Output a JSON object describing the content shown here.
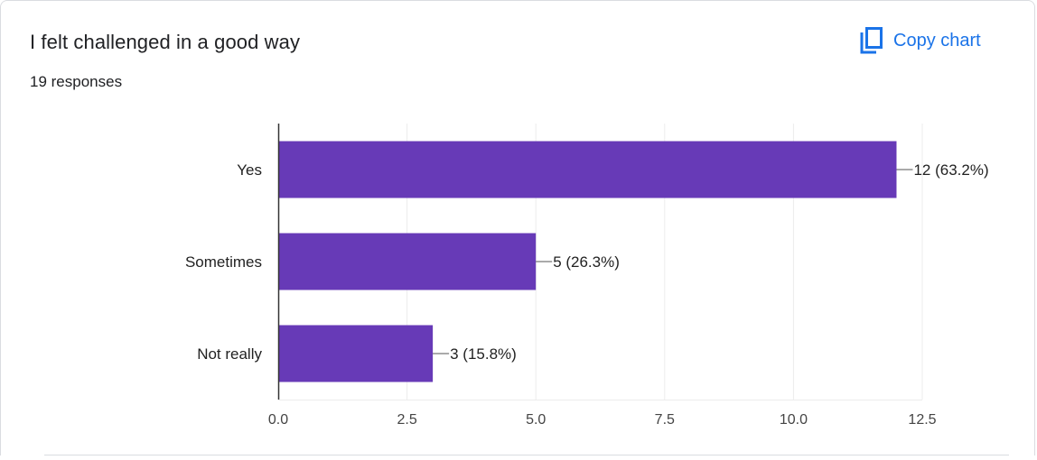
{
  "card": {
    "title": "I felt challenged in a good way",
    "responses": "19 responses",
    "copy_label": "Copy chart",
    "copy_icon": "copy-icon",
    "accent_color": "#1a73e8"
  },
  "chart_data": {
    "type": "bar",
    "orientation": "horizontal",
    "categories": [
      "Yes",
      "Sometimes",
      "Not really"
    ],
    "values": [
      12,
      5,
      3
    ],
    "data_labels": [
      "12 (63.2%)",
      "5 (26.3%)",
      "3 (15.8%)"
    ],
    "xlim": [
      0,
      12.5
    ],
    "x_ticks": [
      0,
      2.5,
      5,
      7.5,
      10,
      12.5
    ],
    "x_tick_labels": [
      "0.0",
      "2.5",
      "5.0",
      "7.5",
      "10.0",
      "12.5"
    ],
    "grid": true,
    "bar_color": "#673ab7",
    "title": "",
    "xlabel": "",
    "ylabel": ""
  }
}
